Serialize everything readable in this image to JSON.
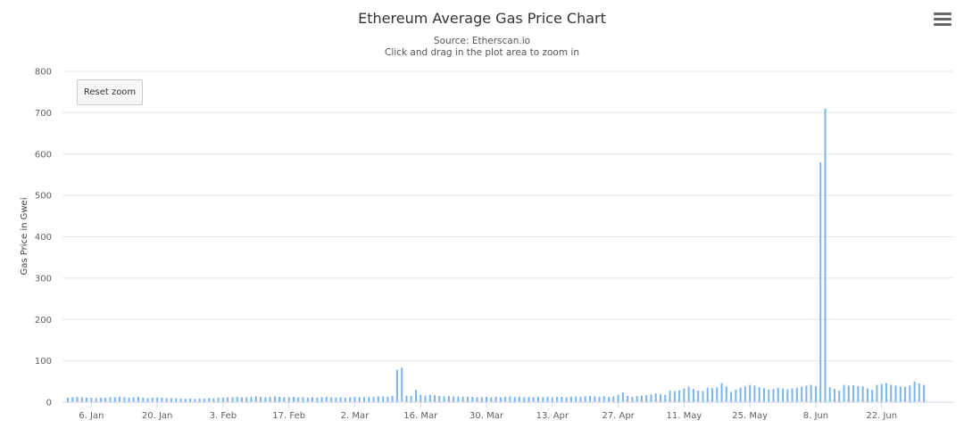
{
  "chart_data": {
    "type": "bar",
    "title": "Ethereum Average Gas Price Chart",
    "subtitle": [
      "Source: Etherscan.io",
      "Click and drag in the plot area to zoom in"
    ],
    "xlabel": "",
    "ylabel": "Gas Price in Gwei",
    "ylim": [
      0,
      800
    ],
    "yticks": [
      0,
      100,
      200,
      300,
      400,
      500,
      600,
      700,
      800
    ],
    "grid": true,
    "x_start": "2020-01-01",
    "xticks": [
      {
        "date": "2020-01-06",
        "label": "6. Jan"
      },
      {
        "date": "2020-01-20",
        "label": "20. Jan"
      },
      {
        "date": "2020-02-03",
        "label": "3. Feb"
      },
      {
        "date": "2020-02-17",
        "label": "17. Feb"
      },
      {
        "date": "2020-03-02",
        "label": "2. Mar"
      },
      {
        "date": "2020-03-16",
        "label": "16. Mar"
      },
      {
        "date": "2020-03-30",
        "label": "30. Mar"
      },
      {
        "date": "2020-04-13",
        "label": "13. Apr"
      },
      {
        "date": "2020-04-27",
        "label": "27. Apr"
      },
      {
        "date": "2020-05-11",
        "label": "11. May"
      },
      {
        "date": "2020-05-25",
        "label": "25. May"
      },
      {
        "date": "2020-06-08",
        "label": "8. Jun"
      },
      {
        "date": "2020-06-22",
        "label": "22. Jun"
      }
    ],
    "values": [
      11,
      12,
      13,
      12,
      11,
      11,
      10,
      11,
      11,
      12,
      12,
      13,
      12,
      11,
      12,
      13,
      11,
      10,
      11,
      12,
      11,
      10,
      10,
      9,
      9,
      8,
      9,
      8,
      9,
      9,
      10,
      10,
      11,
      11,
      12,
      12,
      13,
      12,
      12,
      13,
      14,
      13,
      12,
      13,
      14,
      13,
      12,
      12,
      13,
      12,
      12,
      11,
      12,
      11,
      12,
      13,
      12,
      11,
      12,
      11,
      12,
      13,
      12,
      12,
      13,
      13,
      14,
      14,
      13,
      15,
      78,
      83,
      16,
      15,
      30,
      18,
      16,
      18,
      17,
      15,
      14,
      15,
      14,
      14,
      13,
      13,
      13,
      12,
      12,
      13,
      12,
      13,
      12,
      13,
      14,
      13,
      13,
      12,
      13,
      12,
      13,
      12,
      13,
      12,
      13,
      13,
      12,
      13,
      14,
      13,
      14,
      15,
      14,
      13,
      14,
      13,
      14,
      18,
      24,
      15,
      13,
      15,
      16,
      17,
      19,
      21,
      19,
      18,
      28,
      27,
      29,
      33,
      38,
      32,
      28,
      27,
      35,
      34,
      36,
      46,
      38,
      25,
      30,
      35,
      38,
      42,
      40,
      36,
      34,
      30,
      32,
      35,
      33,
      31,
      33,
      35,
      38,
      40,
      42,
      39,
      580,
      710,
      36,
      32,
      28,
      42,
      40,
      41,
      39,
      38,
      33,
      30,
      42,
      44,
      46,
      42,
      40,
      38,
      37,
      40,
      50,
      45,
      42
    ]
  },
  "controls": {
    "reset_zoom_label": "Reset zoom",
    "menu_icon": "hamburger-menu-icon"
  },
  "colors": {
    "bar": "#7cb5ec",
    "grid": "#e6e6e6",
    "axis": "#ccd6eb"
  }
}
